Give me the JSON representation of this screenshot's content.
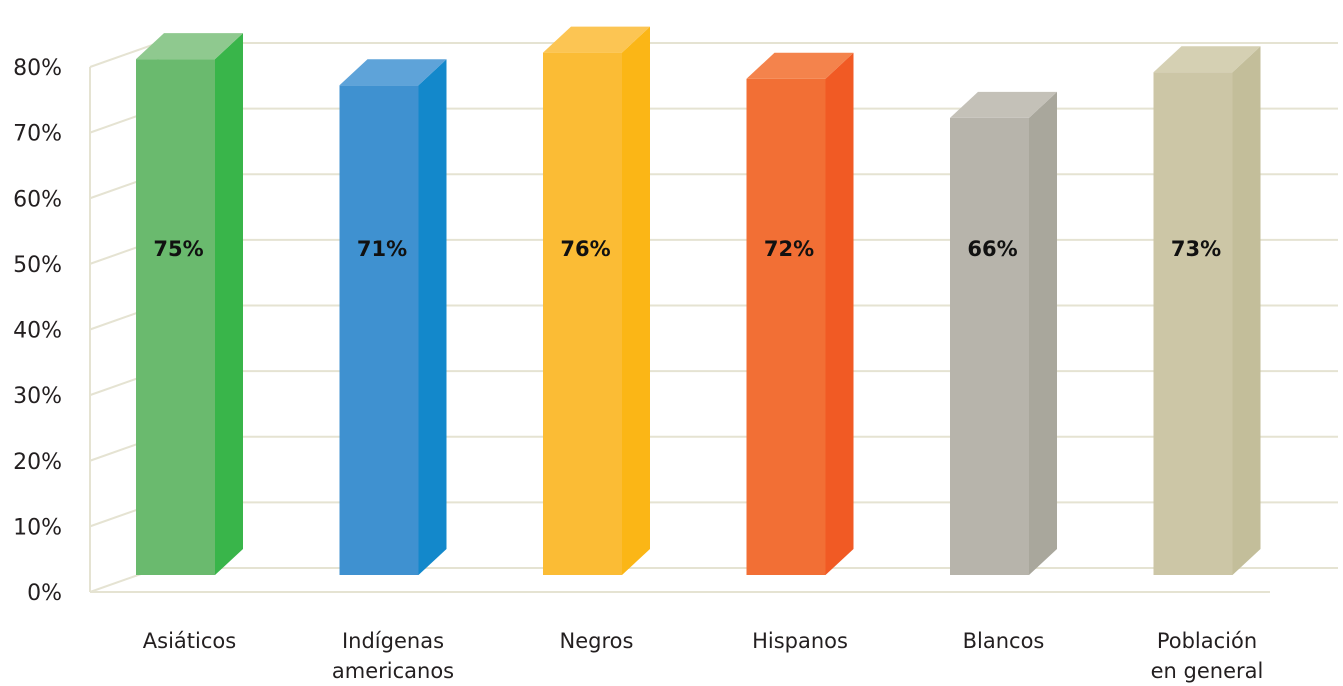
{
  "chart_data": {
    "type": "bar",
    "categories": [
      [
        "Asiáticos"
      ],
      [
        "Indígenas",
        "americanos"
      ],
      [
        "Negros"
      ],
      [
        "Hispanos"
      ],
      [
        "Blancos"
      ],
      [
        "Población",
        "en general"
      ]
    ],
    "values": [
      75,
      71,
      76,
      72,
      66,
      73
    ],
    "data_labels": [
      "75%",
      "71%",
      "76%",
      "72%",
      "66%",
      "73%"
    ],
    "y_ticks": [
      "0%",
      "10%",
      "20%",
      "30%",
      "40%",
      "50%",
      "60%",
      "70%",
      "80%"
    ],
    "ylim": [
      0,
      80
    ],
    "grid": true,
    "style": "3d-column",
    "colors": [
      {
        "front": "#6aba6e",
        "side": "#39b54a",
        "top": "#8fc98f"
      },
      {
        "front": "#3f91d0",
        "side": "#1388cb",
        "top": "#5ea3d9"
      },
      {
        "front": "#fbbc35",
        "side": "#fbb616",
        "top": "#fcc553"
      },
      {
        "front": "#f26f35",
        "side": "#f15a24",
        "top": "#f4834c"
      },
      {
        "front": "#b7b4ab",
        "side": "#a9a79c",
        "top": "#c4c1b8"
      },
      {
        "front": "#ccc6a6",
        "side": "#c3be9a",
        "top": "#d5d0b3"
      }
    ]
  }
}
